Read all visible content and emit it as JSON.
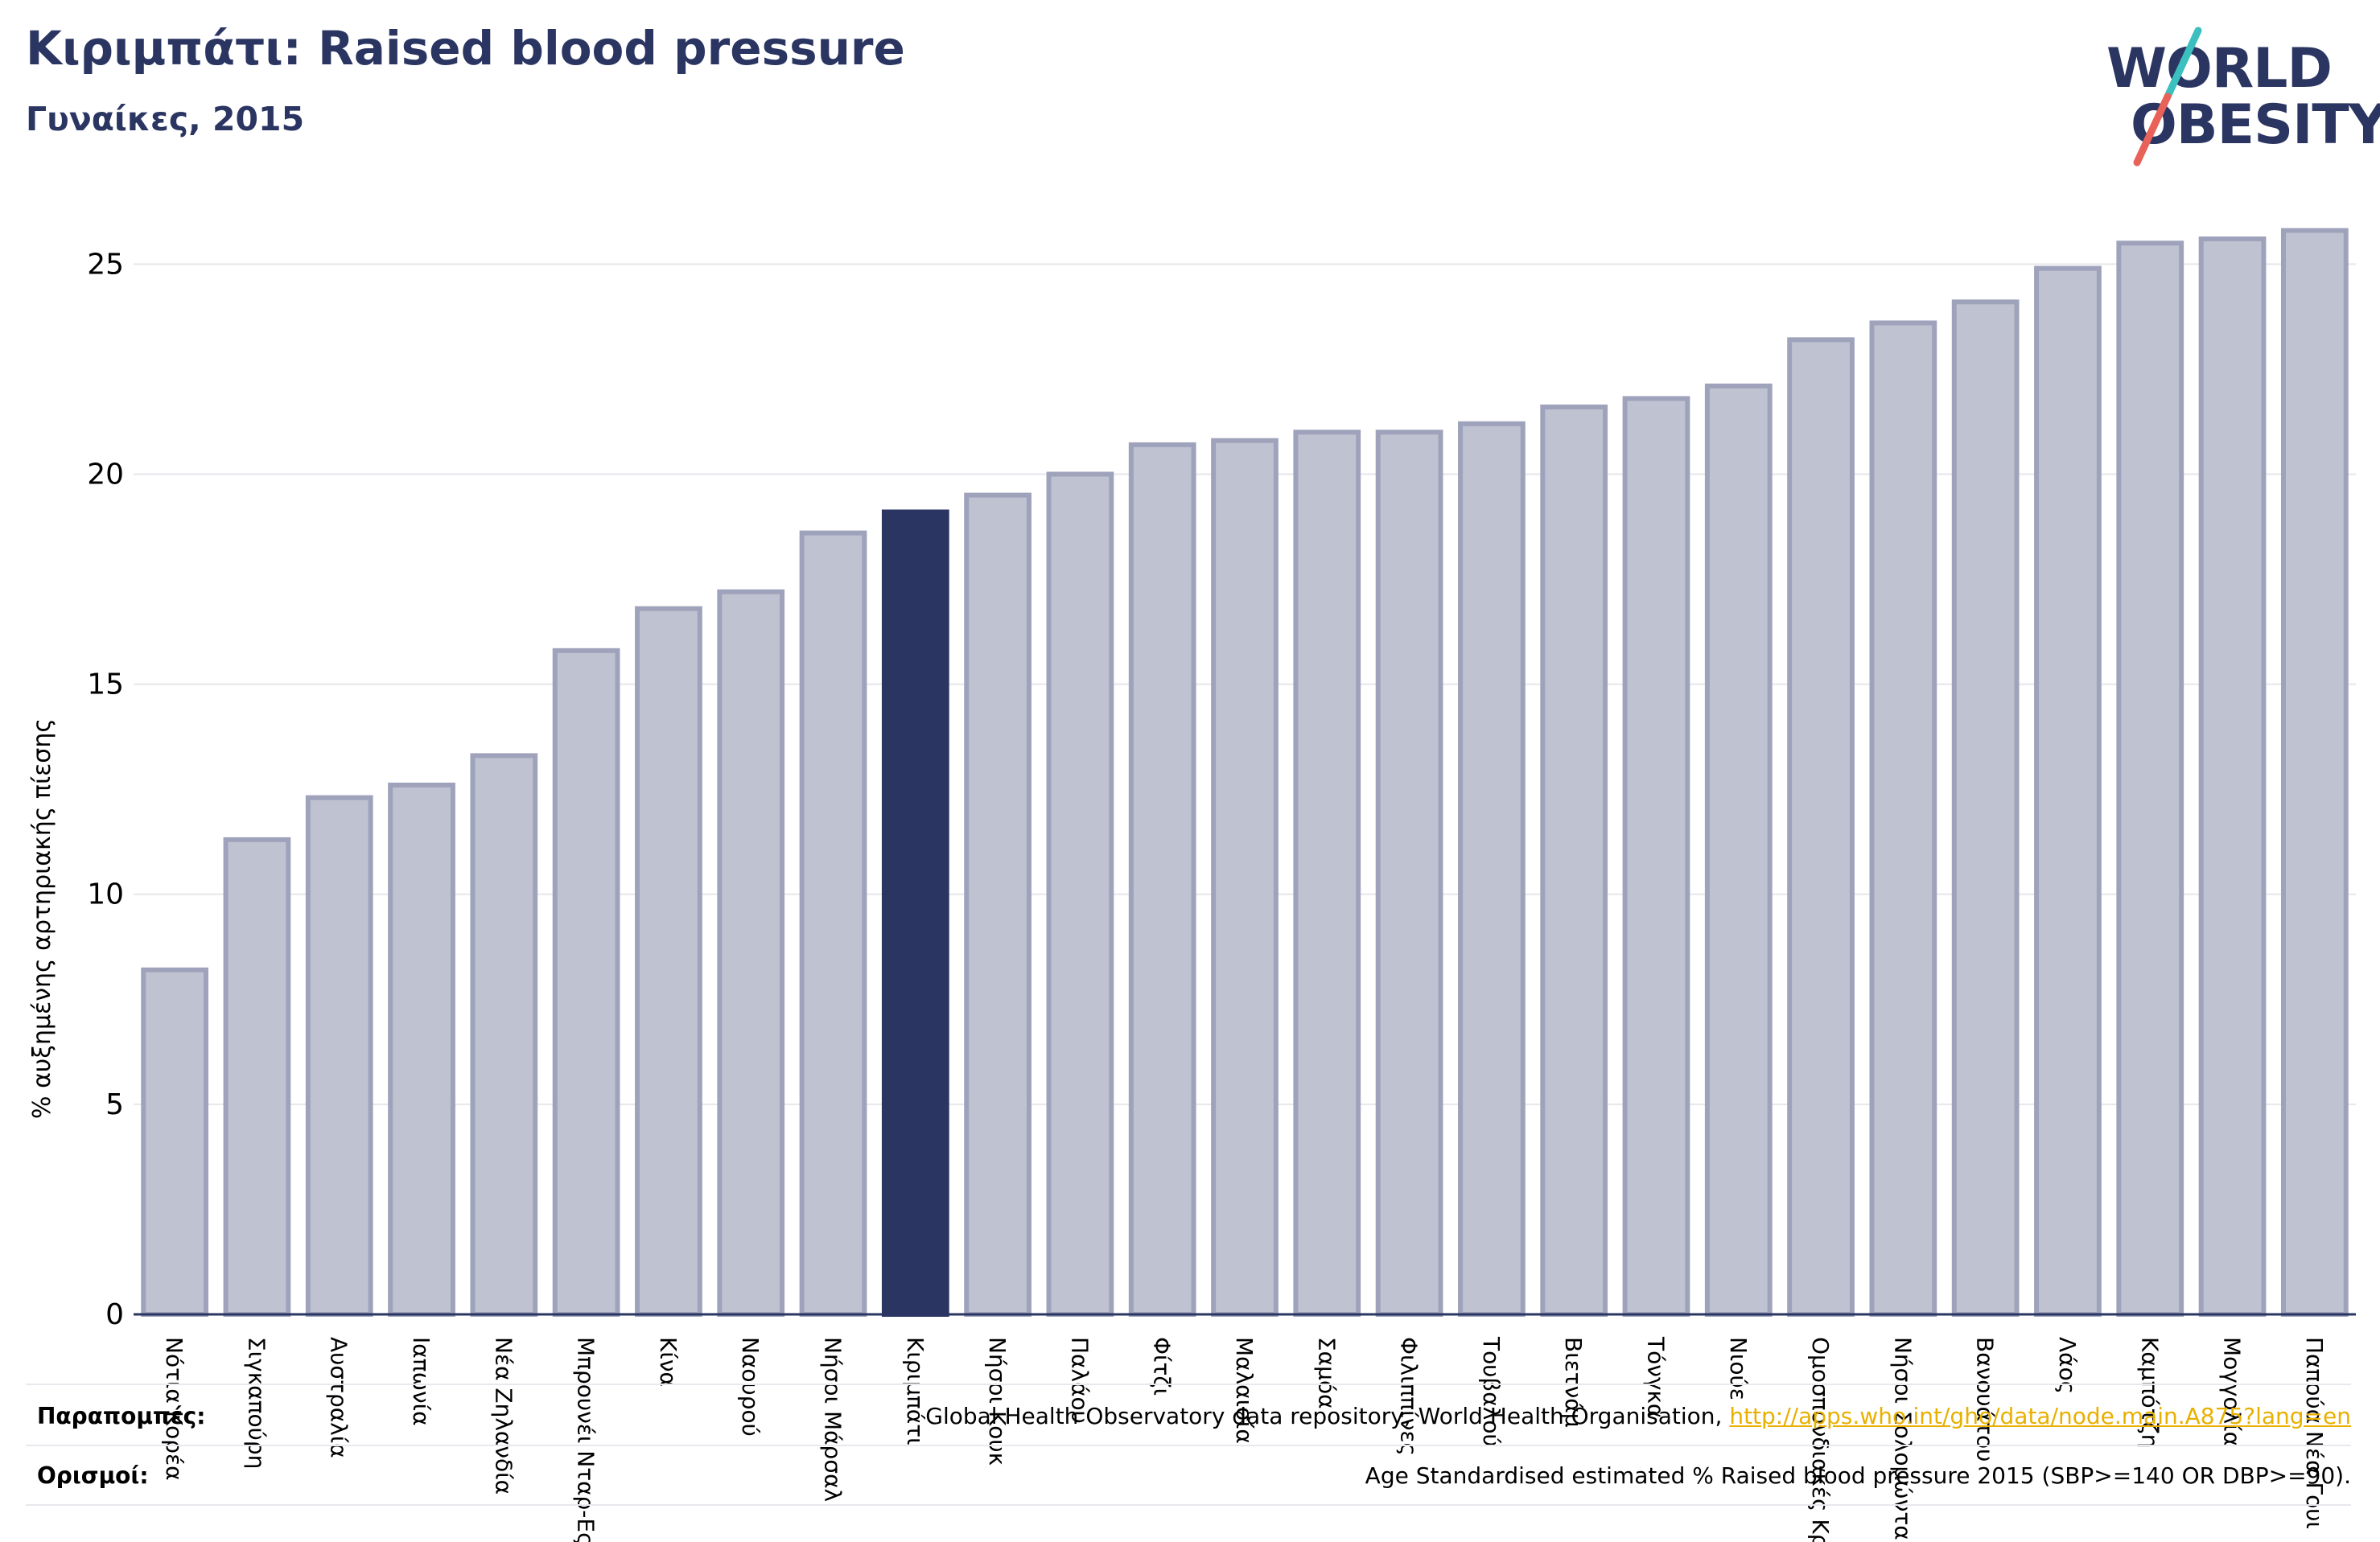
{
  "header": {
    "title": "Κιριμπάτι: Raised blood pressure",
    "subtitle": "Γυναίκες, 2015"
  },
  "logo": {
    "line1": "WORLD",
    "line2": "OBESITY",
    "slash_color_top": "#3bbfbf",
    "slash_color_bottom": "#e8625a"
  },
  "colors": {
    "bar": "#bfc2d0",
    "bar_border": "#9ea3bb",
    "highlight": "#2b3562",
    "grid": "#e6e6ec",
    "axis": "#2b3562"
  },
  "chart_data": {
    "type": "bar",
    "ylabel": "% αυξημένης αρτηριακής πίεσης",
    "ylim": [
      0,
      26.5
    ],
    "yticks": [
      0,
      5,
      10,
      15,
      20,
      25
    ],
    "grid": true,
    "highlight": "Κιριμπάτι",
    "categories": [
      "Νότια Κορέα",
      "Σιγκαπούρη",
      "Αυστραλία",
      "Ιαπωνία",
      "Νέα Ζηλανδία",
      "Μπρουνέι Νταρ-Ες",
      "Κίνα",
      "Ναουρού",
      "Νήσοι Μάρσαλ",
      "Κιριμπάτι",
      "Νήσοι Κουκ",
      "Παλάου",
      "Φίτζι",
      "Μαλαισία",
      "Σαμόα",
      "Φιλιππίνες",
      "Τουβαλού",
      "Βιετνάμ",
      "Τόνγκα",
      "Νιούε",
      "Ομοσπονδιακές Κρ",
      "Νήσοι Σολομώντα",
      "Βανουάτου",
      "Λάος",
      "Καμπότζη",
      "Μογγολία",
      "Παπούα Νέα Γουι"
    ],
    "values": [
      8.2,
      11.3,
      12.3,
      12.6,
      13.3,
      15.8,
      16.8,
      17.2,
      18.6,
      19.1,
      19.5,
      20.0,
      20.7,
      20.8,
      21.0,
      21.0,
      21.2,
      21.6,
      21.8,
      22.1,
      23.2,
      23.6,
      24.1,
      24.9,
      25.5,
      25.6,
      25.8
    ]
  },
  "footer": {
    "sources_label": "Παραπομπές:",
    "sources_text": "Global Health Observatory data repository, World Health Organisation, ",
    "sources_link": "http://apps.who.int/gho/data/node.main.A875?lang=en",
    "definitions_label": "Ορισμοί:",
    "definitions_text": "Age Standardised estimated % Raised blood pressure 2015 (SBP>=140 OR DBP>=90)."
  }
}
